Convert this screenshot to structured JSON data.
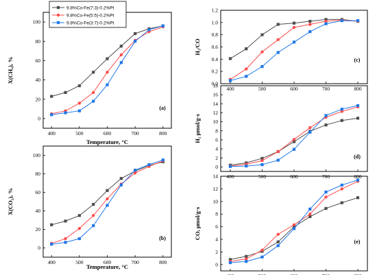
{
  "legend": [
    {
      "label": "9.8%Co-Fe(7:3)-0.2%Pt",
      "color": "#4d4d4d"
    },
    {
      "label": "9.8%Co-Fe(5:5)-0.2%Pt",
      "color": "#ff4d4d"
    },
    {
      "label": "9.8%Co-Fe(3:7)-0.2%Pt",
      "color": "#1f77e8"
    }
  ],
  "chart_data": [
    {
      "type": "line",
      "panel": "(a)",
      "xlabel": "Temperature, °C",
      "ylabel": "X(CH₄), %",
      "xlim": [
        370,
        830
      ],
      "ylim": [
        -10,
        110
      ],
      "xticks": [
        400,
        500,
        600,
        700,
        800
      ],
      "yticks": [
        0,
        20,
        40,
        60,
        80,
        100
      ],
      "x": [
        400,
        450,
        500,
        550,
        600,
        650,
        700,
        750,
        800
      ],
      "series": [
        {
          "name": "9.8%Co-Fe(7:3)-0.2%Pt",
          "color": "#4d4d4d",
          "values": [
            23,
            27,
            34,
            48,
            62,
            75,
            88,
            93,
            96
          ]
        },
        {
          "name": "9.8%Co-Fe(5:5)-0.2%Pt",
          "color": "#ff4d4d",
          "values": [
            5,
            8,
            16,
            27,
            48,
            66,
            81,
            90,
            95
          ]
        },
        {
          "name": "9.8%Co-Fe(3:7)-0.2%Pt",
          "color": "#1f77e8",
          "values": [
            4,
            6,
            8,
            18,
            35,
            58,
            80,
            92,
            96
          ]
        }
      ]
    },
    {
      "type": "line",
      "panel": "(b)",
      "xlabel": "Temperature, °C",
      "ylabel": "X(CO₂), %",
      "xlim": [
        370,
        830
      ],
      "ylim": [
        -10,
        110
      ],
      "xticks": [
        400,
        500,
        600,
        700,
        800
      ],
      "yticks": [
        0,
        20,
        40,
        60,
        80,
        100
      ],
      "x": [
        400,
        450,
        500,
        550,
        600,
        650,
        700,
        750,
        800
      ],
      "series": [
        {
          "name": "9.8%Co-Fe(7:3)-0.2%Pt",
          "color": "#4d4d4d",
          "values": [
            25,
            29,
            35,
            47,
            62,
            75,
            83,
            89,
            93
          ]
        },
        {
          "name": "9.8%Co-Fe(5:5)-0.2%Pt",
          "color": "#ff4d4d",
          "values": [
            5,
            10,
            21,
            35,
            53,
            69,
            81,
            88,
            94
          ]
        },
        {
          "name": "9.8%Co-Fe(3:7)-0.2%Pt",
          "color": "#1f77e8",
          "values": [
            4,
            6,
            10,
            24,
            46,
            68,
            84,
            90,
            95
          ]
        }
      ]
    },
    {
      "type": "line",
      "panel": "(c)",
      "xlabel": "",
      "ylabel": "H₂/CO",
      "xlim": [
        370,
        830
      ],
      "ylim": [
        0.0,
        1.2
      ],
      "xticks": [
        400,
        500,
        600,
        700,
        800
      ],
      "yticks": [
        0.0,
        0.2,
        0.4,
        0.6,
        0.8,
        1.0,
        1.2
      ],
      "x": [
        400,
        450,
        500,
        550,
        600,
        650,
        700,
        750,
        800
      ],
      "series": [
        {
          "name": "9.8%Co-Fe(7:3)-0.2%Pt",
          "color": "#4d4d4d",
          "values": [
            0.41,
            0.57,
            0.8,
            0.97,
            0.99,
            1.02,
            1.05,
            1.05,
            1.02
          ]
        },
        {
          "name": "9.8%Co-Fe(5:5)-0.2%Pt",
          "color": "#ff4d4d",
          "values": [
            0.07,
            0.24,
            0.52,
            0.72,
            0.92,
            0.97,
            1.02,
            1.04,
            1.02
          ]
        },
        {
          "name": "9.8%Co-Fe(3:7)-0.2%Pt",
          "color": "#1f77e8",
          "values": [
            0.05,
            0.12,
            0.28,
            0.51,
            0.68,
            0.85,
            0.98,
            1.03,
            1.03
          ]
        }
      ]
    },
    {
      "type": "line",
      "panel": "(d)",
      "xlabel": "",
      "ylabel": "H₂ μmol/g·s",
      "xlim": [
        370,
        830
      ],
      "ylim": [
        -1,
        18
      ],
      "xticks": [
        400,
        500,
        600,
        700,
        800
      ],
      "yticks": [
        0,
        2,
        4,
        6,
        8,
        10,
        12,
        14,
        16,
        18
      ],
      "x": [
        400,
        450,
        500,
        550,
        600,
        650,
        700,
        750,
        800
      ],
      "series": [
        {
          "name": "9.8%Co-Fe(7:3)-0.2%Pt",
          "color": "#4d4d4d",
          "values": [
            0.4,
            0.9,
            1.9,
            3.4,
            5.6,
            7.9,
            9.3,
            10.3,
            10.8
          ]
        },
        {
          "name": "9.8%Co-Fe(5:5)-0.2%Pt",
          "color": "#ff4d4d",
          "values": [
            0.2,
            0.6,
            1.4,
            3.4,
            6.1,
            8.7,
            11.0,
            12.3,
            13.3
          ]
        },
        {
          "name": "9.8%Co-Fe(3:7)-0.2%Pt",
          "color": "#1f77e8",
          "values": [
            0.1,
            0.2,
            0.5,
            1.5,
            3.9,
            7.7,
            11.4,
            12.8,
            13.6
          ]
        }
      ]
    },
    {
      "type": "line",
      "panel": "(e)",
      "xlabel": "",
      "ylabel": "CO, μmol/g·s",
      "xlim": [
        370,
        830
      ],
      "ylim": [
        -1,
        14
      ],
      "xticks": [
        400,
        500,
        600,
        700,
        800
      ],
      "yticks": [
        0,
        2,
        4,
        6,
        8,
        10,
        12,
        14
      ],
      "x": [
        400,
        450,
        500,
        550,
        600,
        650,
        700,
        750,
        800
      ],
      "series": [
        {
          "name": "9.8%Co-Fe(7:3)-0.2%Pt",
          "color": "#4d4d4d",
          "values": [
            0.8,
            1.3,
            2.1,
            3.6,
            6.0,
            7.6,
            8.9,
            9.8,
            10.6
          ]
        },
        {
          "name": "9.8%Co-Fe(5:5)-0.2%Pt",
          "color": "#ff4d4d",
          "values": [
            0.5,
            0.9,
            2.3,
            4.8,
            6.3,
            8.0,
            10.7,
            12.0,
            13.2
          ]
        },
        {
          "name": "9.8%Co-Fe(3:7)-0.2%Pt",
          "color": "#1f77e8",
          "values": [
            0.3,
            0.5,
            1.2,
            3.0,
            5.7,
            8.8,
            11.5,
            12.6,
            13.4
          ]
        }
      ]
    }
  ]
}
